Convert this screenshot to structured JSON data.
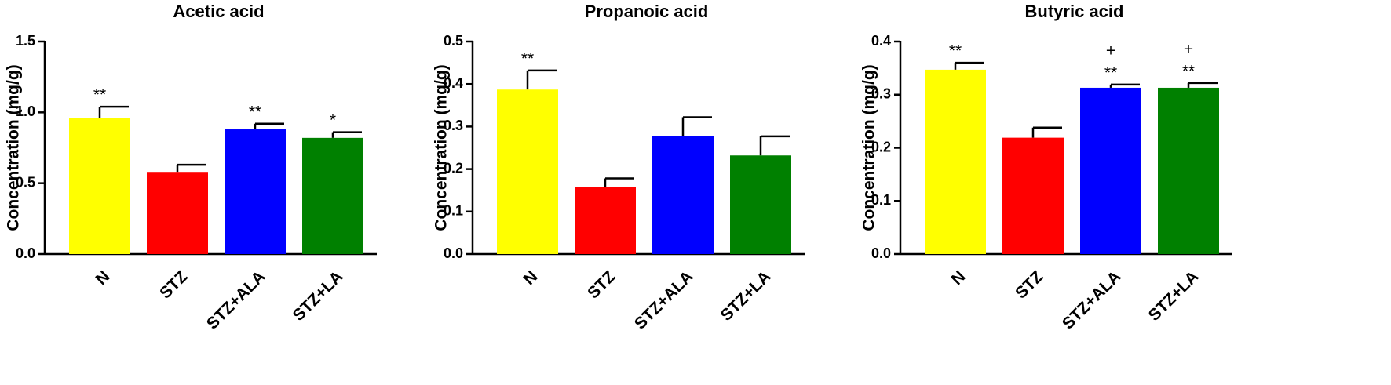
{
  "chart_data": [
    {
      "type": "bar",
      "title": "Acetic acid",
      "y_label": "Concentration (mg/g)",
      "categories": [
        "N",
        "STZ",
        "STZ+ALA",
        "STZ+LA"
      ],
      "values": [
        0.96,
        0.58,
        0.88,
        0.82
      ],
      "errors": [
        0.08,
        0.05,
        0.04,
        0.04
      ],
      "colors": [
        "#ffff00",
        "#ff0000",
        "#0000ff",
        "#008000"
      ],
      "annotations": [
        [
          "**"
        ],
        null,
        [
          "**"
        ],
        [
          "*"
        ]
      ],
      "ylim": [
        0,
        1.5
      ],
      "yticks": [
        {
          "value": 0,
          "label": "0.0"
        },
        0.5,
        {
          "value": 1,
          "label": "1.0"
        },
        1.5
      ]
    },
    {
      "type": "bar",
      "title": "Propanoic acid",
      "y_label": "Concentration (mg/g)",
      "categories": [
        "N",
        "STZ",
        "STZ+ALA",
        "STZ+LA"
      ],
      "values": [
        0.387,
        0.158,
        0.277,
        0.232
      ],
      "errors": [
        0.045,
        0.02,
        0.045,
        0.045
      ],
      "colors": [
        "#ffff00",
        "#ff0000",
        "#0000ff",
        "#008000"
      ],
      "annotations": [
        [
          "**"
        ],
        null,
        null,
        null
      ],
      "ylim": [
        0,
        0.5
      ],
      "yticks": [
        {
          "value": 0,
          "label": "0.0"
        },
        0.1,
        0.2,
        0.3,
        0.4,
        0.5
      ]
    },
    {
      "type": "bar",
      "title": "Butyric acid",
      "y_label": "Concentration (mg/g)",
      "categories": [
        "N",
        "STZ",
        "STZ+ALA",
        "STZ+LA"
      ],
      "values": [
        0.347,
        0.219,
        0.313,
        0.313
      ],
      "errors": [
        0.013,
        0.019,
        0.006,
        0.009
      ],
      "colors": [
        "#ffff00",
        "#ff0000",
        "#0000ff",
        "#008000"
      ],
      "annotations": [
        [
          "**"
        ],
        null,
        [
          "+",
          "**"
        ],
        [
          "+",
          "**"
        ]
      ],
      "ylim": [
        0,
        0.4
      ],
      "yticks": [
        {
          "value": 0,
          "label": "0.0"
        },
        0.1,
        0.2,
        0.3,
        0.4
      ]
    }
  ]
}
